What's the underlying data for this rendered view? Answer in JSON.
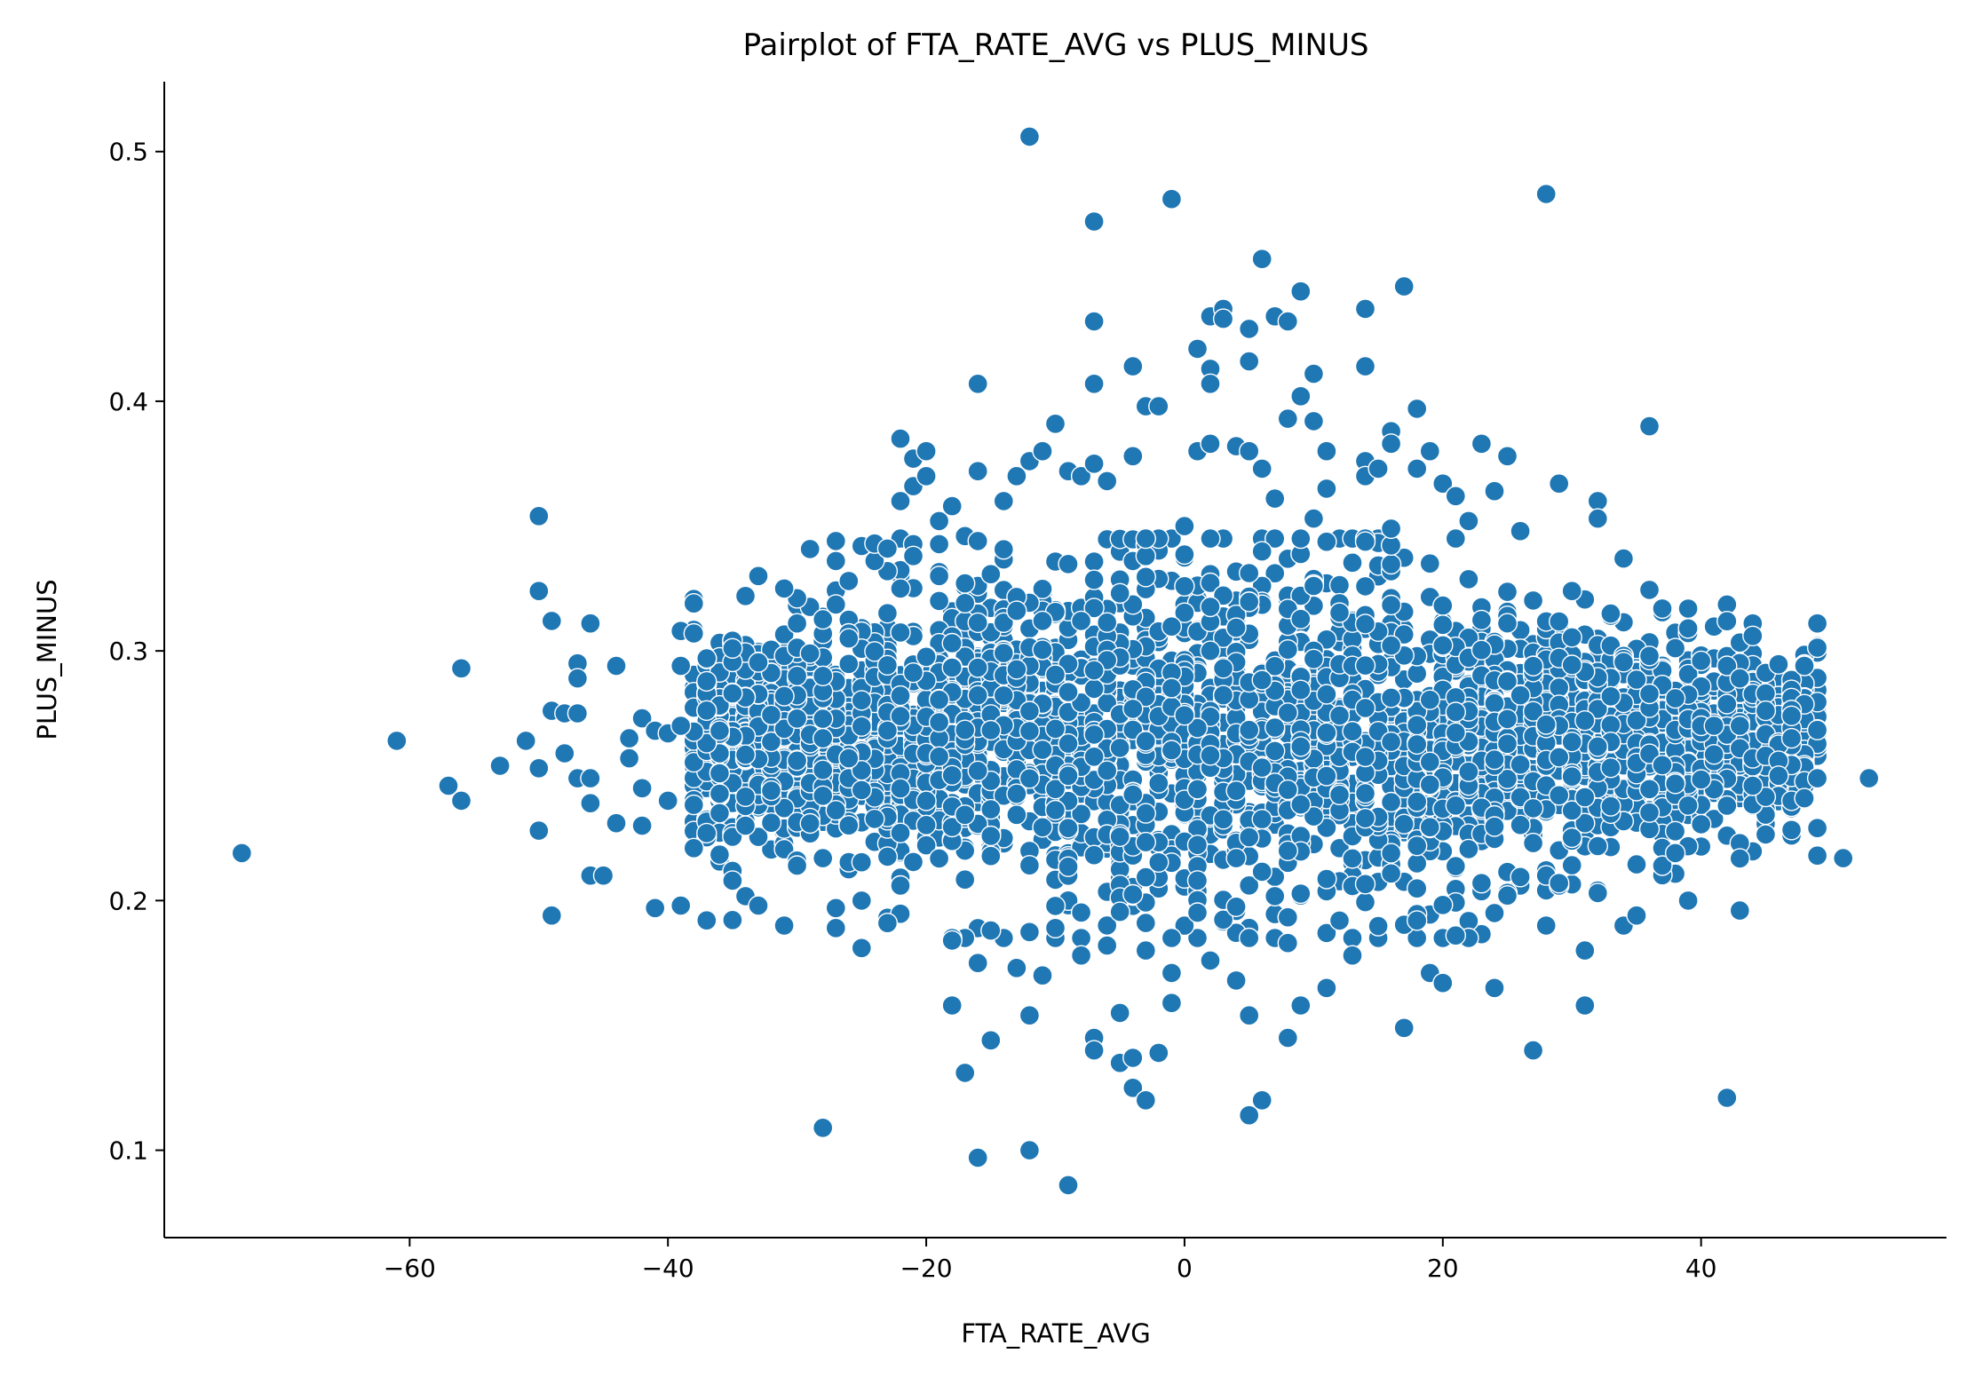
{
  "chart_data": {
    "type": "scatter",
    "title": "Pairplot of FTA_RATE_AVG vs PLUS_MINUS",
    "xlabel": "FTA_RATE_AVG",
    "ylabel": "PLUS_MINUS",
    "xlim": [
      -79,
      59
    ],
    "ylim": [
      0.065,
      0.528
    ],
    "xticks": [
      -60,
      -40,
      -20,
      0,
      20,
      40
    ],
    "xtick_labels": [
      "−60",
      "−40",
      "−20",
      "0",
      "20",
      "40"
    ],
    "yticks": [
      0.1,
      0.2,
      0.3,
      0.4,
      0.5
    ],
    "ytick_labels": [
      "0.1",
      "0.2",
      "0.3",
      "0.4",
      "0.5"
    ],
    "grid": false,
    "color": "#1f77b4",
    "points": [
      [
        -73,
        0.219
      ],
      [
        -61,
        0.264
      ],
      [
        -57,
        0.246
      ],
      [
        -56,
        0.293
      ],
      [
        -56,
        0.24
      ],
      [
        -53,
        0.254
      ],
      [
        -51,
        0.264
      ],
      [
        -50,
        0.354
      ],
      [
        -50,
        0.324
      ],
      [
        -50,
        0.253
      ],
      [
        -50,
        0.228
      ],
      [
        -49,
        0.312
      ],
      [
        -49,
        0.276
      ],
      [
        -49,
        0.194
      ],
      [
        -48,
        0.275
      ],
      [
        -48,
        0.259
      ],
      [
        -47,
        0.295
      ],
      [
        -47,
        0.289
      ],
      [
        -47,
        0.275
      ],
      [
        -47,
        0.249
      ],
      [
        -46,
        0.311
      ],
      [
        -46,
        0.249
      ],
      [
        -46,
        0.239
      ],
      [
        -46,
        0.21
      ],
      [
        -45,
        0.21
      ],
      [
        -44,
        0.294
      ],
      [
        -44,
        0.231
      ],
      [
        -43,
        0.265
      ],
      [
        -43,
        0.257
      ],
      [
        -42,
        0.273
      ],
      [
        -42,
        0.245
      ],
      [
        -42,
        0.23
      ],
      [
        -41,
        0.197
      ],
      [
        -41,
        0.268
      ],
      [
        -40,
        0.267
      ],
      [
        -40,
        0.24
      ],
      [
        -39,
        0.308
      ],
      [
        -39,
        0.294
      ],
      [
        -39,
        0.27
      ],
      [
        -39,
        0.198
      ],
      [
        -38,
        0.319
      ],
      [
        -38,
        0.307
      ],
      [
        -38,
        0.221
      ],
      [
        -37,
        0.297
      ],
      [
        -37,
        0.227
      ],
      [
        -36,
        0.268
      ],
      [
        -36,
        0.235
      ],
      [
        -35,
        0.301
      ],
      [
        -35,
        0.283
      ],
      [
        -35,
        0.208
      ],
      [
        -34,
        0.322
      ],
      [
        -34,
        0.23
      ],
      [
        -33,
        0.33
      ],
      [
        -33,
        0.198
      ],
      [
        -32,
        0.244
      ],
      [
        -31,
        0.325
      ],
      [
        -31,
        0.19
      ],
      [
        -30,
        0.311
      ],
      [
        -30,
        0.29
      ],
      [
        -30,
        0.214
      ],
      [
        -29,
        0.299
      ],
      [
        -28,
        0.109
      ],
      [
        -28,
        0.29
      ],
      [
        -28,
        0.265
      ],
      [
        -28,
        0.242
      ],
      [
        -28,
        0.217
      ],
      [
        -27,
        0.344
      ],
      [
        -27,
        0.336
      ],
      [
        -27,
        0.189
      ],
      [
        -27,
        0.197
      ],
      [
        -26,
        0.328
      ],
      [
        -26,
        0.305
      ],
      [
        -26,
        0.257
      ],
      [
        -25,
        0.342
      ],
      [
        -25,
        0.2
      ],
      [
        -25,
        0.181
      ],
      [
        -24,
        0.336
      ],
      [
        -24,
        0.343
      ],
      [
        -23,
        0.341
      ],
      [
        -23,
        0.191
      ],
      [
        -22,
        0.385
      ],
      [
        -22,
        0.36
      ],
      [
        -22,
        0.325
      ],
      [
        -22,
        0.206
      ],
      [
        -21,
        0.377
      ],
      [
        -21,
        0.366
      ],
      [
        -21,
        0.338
      ],
      [
        -20,
        0.38
      ],
      [
        -20,
        0.37
      ],
      [
        -19,
        0.352
      ],
      [
        -19,
        0.33
      ],
      [
        -18,
        0.358
      ],
      [
        -18,
        0.158
      ],
      [
        -18,
        0.184
      ],
      [
        -17,
        0.346
      ],
      [
        -17,
        0.131
      ],
      [
        -16,
        0.407
      ],
      [
        -16,
        0.372
      ],
      [
        -16,
        0.344
      ],
      [
        -16,
        0.097
      ],
      [
        -16,
        0.175
      ],
      [
        -15,
        0.144
      ],
      [
        -15,
        0.188
      ],
      [
        -14,
        0.36
      ],
      [
        -13,
        0.37
      ],
      [
        -13,
        0.173
      ],
      [
        -12,
        0.506
      ],
      [
        -12,
        0.376
      ],
      [
        -12,
        0.154
      ],
      [
        -12,
        0.1
      ],
      [
        -11,
        0.38
      ],
      [
        -11,
        0.17
      ],
      [
        -10,
        0.391
      ],
      [
        -10,
        0.189
      ],
      [
        -9,
        0.372
      ],
      [
        -9,
        0.086
      ],
      [
        -8,
        0.37
      ],
      [
        -8,
        0.178
      ],
      [
        -7,
        0.472
      ],
      [
        -7,
        0.432
      ],
      [
        -7,
        0.407
      ],
      [
        -7,
        0.375
      ],
      [
        -7,
        0.145
      ],
      [
        -7,
        0.14
      ],
      [
        -6,
        0.368
      ],
      [
        -6,
        0.182
      ],
      [
        -5,
        0.155
      ],
      [
        -5,
        0.135
      ],
      [
        -4,
        0.414
      ],
      [
        -4,
        0.378
      ],
      [
        -4,
        0.137
      ],
      [
        -4,
        0.125
      ],
      [
        -3,
        0.398
      ],
      [
        -3,
        0.12
      ],
      [
        -3,
        0.18
      ],
      [
        -2,
        0.398
      ],
      [
        -2,
        0.139
      ],
      [
        -1,
        0.481
      ],
      [
        -1,
        0.159
      ],
      [
        -1,
        0.171
      ],
      [
        -1,
        0.185
      ],
      [
        0,
        0.35
      ],
      [
        1,
        0.421
      ],
      [
        1,
        0.38
      ],
      [
        2,
        0.434
      ],
      [
        2,
        0.413
      ],
      [
        2,
        0.407
      ],
      [
        2,
        0.383
      ],
      [
        2,
        0.176
      ],
      [
        3,
        0.437
      ],
      [
        3,
        0.433
      ],
      [
        4,
        0.382
      ],
      [
        4,
        0.168
      ],
      [
        5,
        0.429
      ],
      [
        5,
        0.416
      ],
      [
        5,
        0.38
      ],
      [
        5,
        0.154
      ],
      [
        5,
        0.114
      ],
      [
        6,
        0.457
      ],
      [
        6,
        0.373
      ],
      [
        6,
        0.12
      ],
      [
        7,
        0.434
      ],
      [
        7,
        0.361
      ],
      [
        8,
        0.432
      ],
      [
        8,
        0.393
      ],
      [
        8,
        0.145
      ],
      [
        8,
        0.183
      ],
      [
        9,
        0.444
      ],
      [
        9,
        0.402
      ],
      [
        9,
        0.158
      ],
      [
        10,
        0.411
      ],
      [
        10,
        0.392
      ],
      [
        10,
        0.353
      ],
      [
        11,
        0.38
      ],
      [
        11,
        0.365
      ],
      [
        11,
        0.165
      ],
      [
        12,
        0.192
      ],
      [
        13,
        0.178
      ],
      [
        14,
        0.437
      ],
      [
        14,
        0.414
      ],
      [
        14,
        0.376
      ],
      [
        14,
        0.37
      ],
      [
        15,
        0.373
      ],
      [
        16,
        0.388
      ],
      [
        16,
        0.383
      ],
      [
        16,
        0.349
      ],
      [
        17,
        0.446
      ],
      [
        17,
        0.149
      ],
      [
        18,
        0.397
      ],
      [
        18,
        0.373
      ],
      [
        18,
        0.192
      ],
      [
        19,
        0.38
      ],
      [
        19,
        0.171
      ],
      [
        20,
        0.367
      ],
      [
        20,
        0.167
      ],
      [
        21,
        0.362
      ],
      [
        21,
        0.186
      ],
      [
        22,
        0.352
      ],
      [
        23,
        0.383
      ],
      [
        23,
        0.207
      ],
      [
        24,
        0.364
      ],
      [
        24,
        0.165
      ],
      [
        24,
        0.195
      ],
      [
        25,
        0.378
      ],
      [
        25,
        0.202
      ],
      [
        26,
        0.348
      ],
      [
        27,
        0.14
      ],
      [
        28,
        0.483
      ],
      [
        28,
        0.19
      ],
      [
        29,
        0.367
      ],
      [
        29,
        0.207
      ],
      [
        30,
        0.324
      ],
      [
        31,
        0.158
      ],
      [
        31,
        0.18
      ],
      [
        32,
        0.36
      ],
      [
        32,
        0.353
      ],
      [
        32,
        0.203
      ],
      [
        34,
        0.337
      ],
      [
        34,
        0.19
      ],
      [
        35,
        0.194
      ],
      [
        36,
        0.39
      ],
      [
        36,
        0.298
      ],
      [
        37,
        0.317
      ],
      [
        37,
        0.214
      ],
      [
        38,
        0.281
      ],
      [
        38,
        0.219
      ],
      [
        39,
        0.309
      ],
      [
        39,
        0.2
      ],
      [
        40,
        0.296
      ],
      [
        40,
        0.27
      ],
      [
        41,
        0.27
      ],
      [
        42,
        0.294
      ],
      [
        42,
        0.121
      ],
      [
        42,
        0.238
      ],
      [
        43,
        0.289
      ],
      [
        43,
        0.27
      ],
      [
        43,
        0.261
      ],
      [
        43,
        0.196
      ],
      [
        44,
        0.311
      ],
      [
        44,
        0.306
      ],
      [
        44,
        0.257
      ],
      [
        44,
        0.246
      ],
      [
        45,
        0.283
      ],
      [
        45,
        0.276
      ],
      [
        45,
        0.258
      ],
      [
        46,
        0.256
      ],
      [
        46,
        0.25
      ],
      [
        47,
        0.274
      ],
      [
        47,
        0.265
      ],
      [
        47,
        0.24
      ],
      [
        48,
        0.294
      ],
      [
        48,
        0.241
      ],
      [
        49,
        0.311
      ],
      [
        49,
        0.249
      ],
      [
        49,
        0.218
      ],
      [
        51,
        0.217
      ],
      [
        53,
        0.249
      ]
    ],
    "dense_cloud": {
      "x_range": [
        -38,
        49
      ],
      "y_center": 0.265,
      "y_spread": 0.045,
      "count": 3200
    }
  }
}
